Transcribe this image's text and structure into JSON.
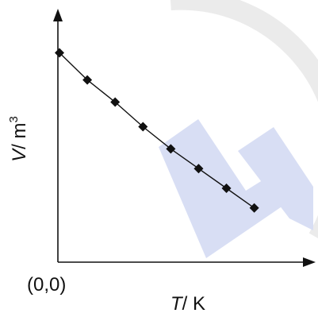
{
  "chart_data": {
    "type": "line",
    "title": "",
    "xlabel_symbol": "T",
    "xlabel_unit": "/ K",
    "ylabel_symbol": "V",
    "ylabel_unit": "/ m",
    "ylabel_superscript": "3",
    "origin_label": "(0,0)",
    "xlim": [
      0,
      10
    ],
    "ylim": [
      0,
      10
    ],
    "grid": false,
    "legend": "none",
    "series": [
      {
        "x": [
          0.0,
          1.1,
          2.2,
          3.3,
          4.4,
          5.5,
          6.6,
          7.7
        ],
        "y": [
          8.5,
          7.4,
          6.5,
          5.5,
          4.6,
          3.8,
          3.0,
          2.2
        ]
      }
    ],
    "colors": {
      "axis": "#111111",
      "line": "#111111",
      "marker": "#111111"
    }
  },
  "watermark": {
    "letters": "LE",
    "color": "#d8def4",
    "ring_color": "#ebebeb"
  }
}
